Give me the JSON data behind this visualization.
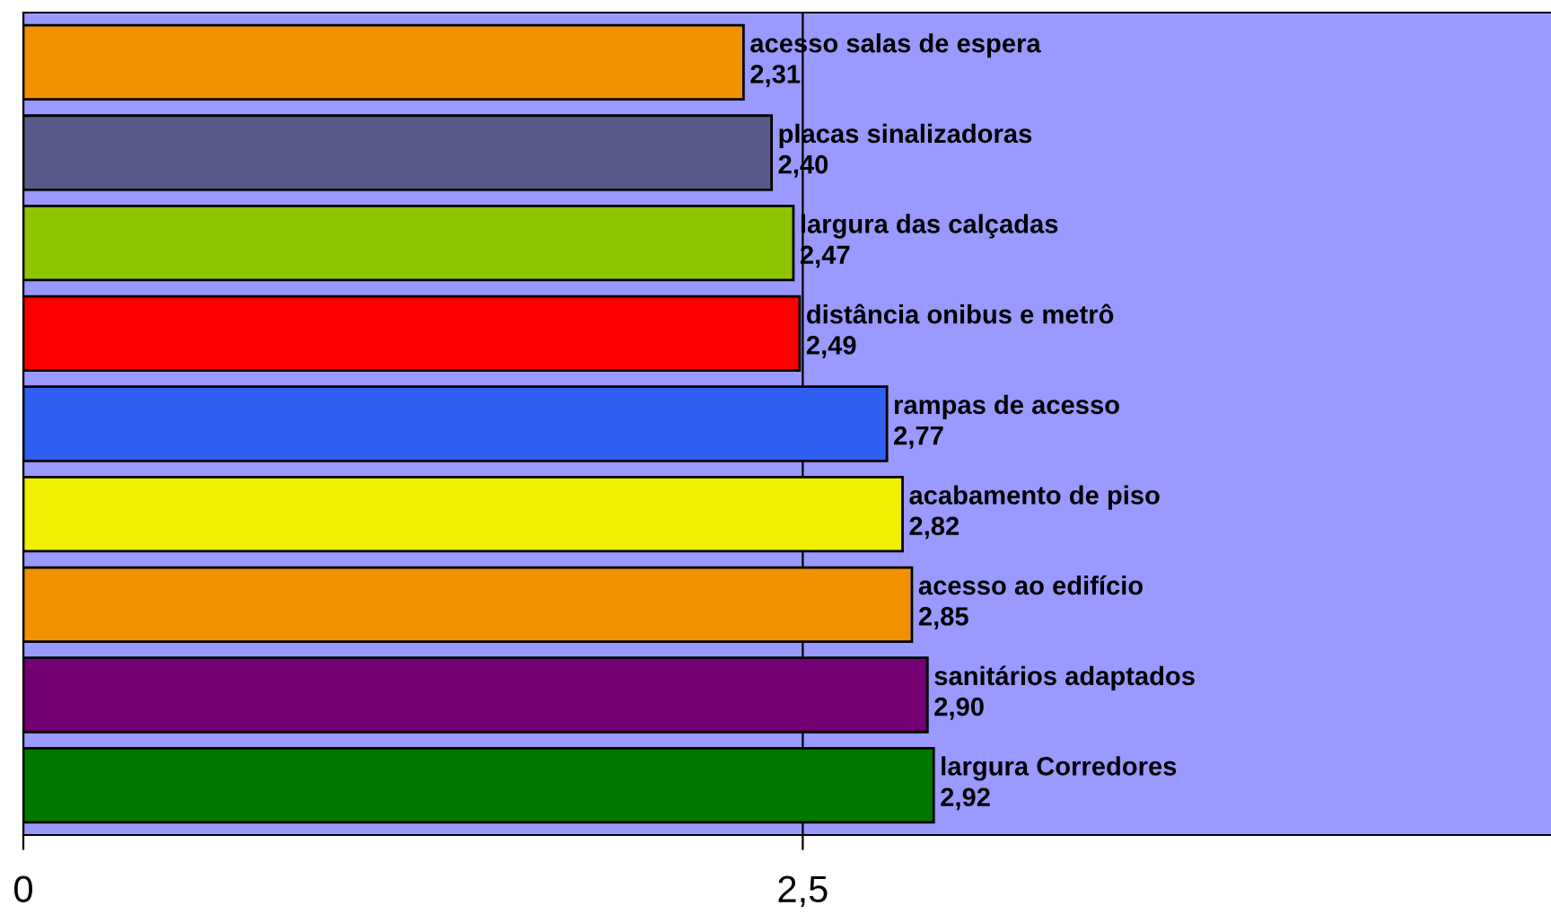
{
  "chart_data": {
    "type": "bar",
    "orientation": "horizontal",
    "categories": [
      "acesso salas de espera",
      "placas sinalizadoras",
      "largura das calçadas",
      "distância onibus e metrô",
      "rampas de acesso",
      "acabamento de piso",
      "acesso ao edifício",
      "sanitários adaptados",
      "largura Corredores"
    ],
    "values": [
      2.31,
      2.4,
      2.47,
      2.49,
      2.77,
      2.82,
      2.85,
      2.9,
      2.92
    ],
    "value_labels": [
      "2,31",
      "2,40",
      "2,47",
      "2,49",
      "2,77",
      "2,82",
      "2,85",
      "2,90",
      "2,92"
    ],
    "colors": [
      "#f29100",
      "#5a5a8a",
      "#8fc400",
      "#ff0000",
      "#2f5ff0",
      "#f0f000",
      "#f29100",
      "#740074",
      "#007800"
    ],
    "xlim": [
      0,
      4.9
    ],
    "xticks": [
      0,
      {
        "value": 2.5,
        "label": "2,5"
      }
    ],
    "grid": "x",
    "legend": false
  }
}
